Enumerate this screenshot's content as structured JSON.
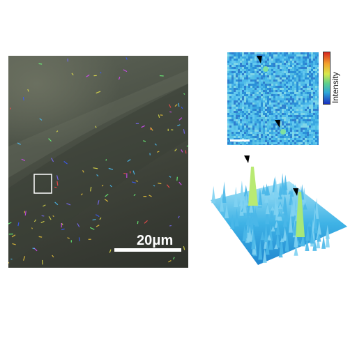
{
  "micrograph": {
    "scale_bar_label": "20μm"
  },
  "intensity_map": {
    "colorbar_label": "Intensity",
    "colormap": [
      "#d7261e",
      "#f3a12c",
      "#d8e84a",
      "#5fd08b",
      "#2ea7d8",
      "#1a2fbf"
    ]
  },
  "colors": {
    "background": "#ffffff",
    "heatmap_base": "#3aa6e0",
    "scale_bar": "#ffffff"
  }
}
